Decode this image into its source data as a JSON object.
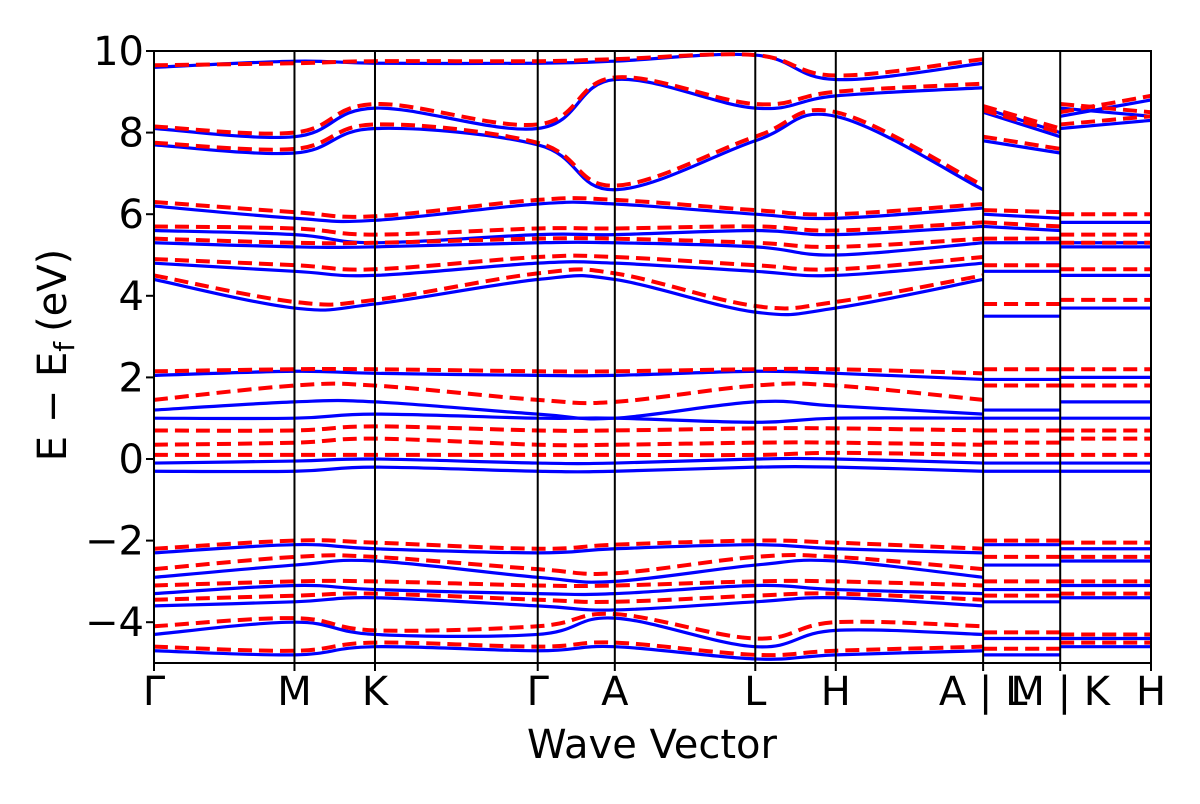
{
  "chart_data": {
    "type": "line",
    "title": "",
    "xlabel": "Wave Vector",
    "ylabel": "E − E",
    "ylabel_sub": "f",
    "ylabel_unit": "(eV)",
    "ylim": [
      -5,
      10
    ],
    "yticks": [
      -4,
      -2,
      0,
      2,
      4,
      6,
      8,
      10
    ],
    "ytick_labels": [
      "−4",
      "−2",
      "0",
      "2",
      "4",
      "6",
      "8",
      "10"
    ],
    "xlim": [
      0,
      5.82
    ],
    "kpoint_positions": [
      0,
      0.82,
      1.29,
      2.24,
      2.69,
      3.51,
      3.98,
      4.84,
      5.29,
      5.82
    ],
    "kpoint_labels": [
      "Γ",
      "M",
      "K",
      "Γ",
      "A",
      "L",
      "H",
      "A | L",
      "M | K",
      "H"
    ],
    "grid": false,
    "legend": "none",
    "series_colors": {
      "solid": "#0000ff",
      "dashed": "#ff0000"
    },
    "segments": [
      {
        "x": [
          0,
          0.82,
          1.29,
          2.24,
          2.69,
          3.51,
          3.98,
          4.84
        ]
      },
      {
        "x": [
          4.84,
          5.29
        ]
      },
      {
        "x": [
          5.29,
          5.82
        ]
      }
    ],
    "series": [
      {
        "style": "solid",
        "bands": [
          [
            [
              9.6,
              9.75,
              9.7,
              9.7,
              9.75,
              9.9,
              9.3,
              9.7
            ],
            [
              8.6,
              8.0
            ],
            [
              8.6,
              8.4
            ]
          ],
          [
            [
              8.1,
              7.9,
              8.6,
              8.1,
              9.3,
              8.6,
              8.9,
              9.1
            ],
            [
              8.5,
              7.9
            ],
            [
              8.4,
              8.8
            ]
          ],
          [
            [
              7.7,
              7.5,
              8.1,
              7.7,
              6.6,
              7.8,
              8.4,
              6.6
            ],
            [
              7.8,
              7.5
            ],
            [
              8.1,
              8.3
            ]
          ],
          [
            [
              6.2,
              5.9,
              5.85,
              6.25,
              6.25,
              6.0,
              5.9,
              6.15
            ],
            [
              6.0,
              5.9
            ],
            [
              5.8,
              5.8
            ]
          ],
          [
            [
              5.6,
              5.5,
              5.3,
              5.5,
              5.5,
              5.6,
              5.5,
              5.7
            ],
            [
              5.7,
              5.6
            ],
            [
              5.3,
              5.3
            ]
          ],
          [
            [
              5.3,
              5.2,
              5.2,
              5.3,
              5.3,
              5.2,
              5.0,
              5.3
            ],
            [
              5.3,
              5.3
            ],
            [
              5.2,
              5.2
            ]
          ],
          [
            [
              4.8,
              4.6,
              4.5,
              4.8,
              4.8,
              4.6,
              4.5,
              4.8
            ],
            [
              4.6,
              4.6
            ],
            [
              4.5,
              4.5
            ]
          ],
          [
            [
              4.4,
              3.7,
              3.8,
              4.4,
              4.4,
              3.6,
              3.7,
              4.4
            ],
            [
              3.5,
              3.5
            ],
            [
              3.7,
              3.7
            ]
          ],
          [
            [
              2.05,
              2.15,
              2.1,
              2.05,
              2.05,
              2.15,
              2.1,
              1.95
            ],
            [
              1.95,
              1.95
            ],
            [
              2.0,
              2.0
            ]
          ],
          [
            [
              1.2,
              1.4,
              1.4,
              1.1,
              1.0,
              1.4,
              1.3,
              1.1
            ],
            [
              1.2,
              1.2
            ],
            [
              1.4,
              1.4
            ]
          ],
          [
            [
              1.0,
              1.0,
              1.1,
              1.0,
              1.0,
              0.9,
              1.0,
              1.0
            ],
            [
              1.0,
              1.0
            ],
            [
              1.0,
              1.0
            ]
          ],
          [
            [
              -0.1,
              -0.05,
              0.0,
              -0.1,
              -0.1,
              0.0,
              0.0,
              -0.1
            ],
            [
              -0.1,
              -0.1
            ],
            [
              -0.1,
              -0.1
            ]
          ],
          [
            [
              -0.3,
              -0.3,
              -0.2,
              -0.3,
              -0.3,
              -0.2,
              -0.2,
              -0.3
            ],
            [
              -0.3,
              -0.3
            ],
            [
              -0.3,
              -0.3
            ]
          ],
          [
            [
              -2.3,
              -2.1,
              -2.2,
              -2.3,
              -2.2,
              -2.1,
              -2.2,
              -2.3
            ],
            [
              -2.1,
              -2.1
            ],
            [
              -2.2,
              -2.2
            ]
          ],
          [
            [
              -2.9,
              -2.6,
              -2.5,
              -2.9,
              -3.0,
              -2.6,
              -2.5,
              -2.9
            ],
            [
              -2.6,
              -2.6
            ],
            [
              -2.5,
              -2.5
            ]
          ],
          [
            [
              -3.3,
              -3.1,
              -3.2,
              -3.3,
              -3.3,
              -3.1,
              -3.2,
              -3.3
            ],
            [
              -3.2,
              -3.2
            ],
            [
              -3.1,
              -3.1
            ]
          ],
          [
            [
              -3.6,
              -3.5,
              -3.4,
              -3.6,
              -3.7,
              -3.5,
              -3.4,
              -3.6
            ],
            [
              -3.5,
              -3.5
            ],
            [
              -3.4,
              -3.4
            ]
          ],
          [
            [
              -4.3,
              -4.0,
              -4.3,
              -4.3,
              -3.9,
              -4.6,
              -4.2,
              -4.3
            ],
            [
              -4.4,
              -4.4
            ],
            [
              -4.4,
              -4.4
            ]
          ],
          [
            [
              -4.7,
              -4.8,
              -4.6,
              -4.7,
              -4.6,
              -4.9,
              -4.8,
              -4.7
            ],
            [
              -4.8,
              -4.8
            ],
            [
              -4.6,
              -4.6
            ]
          ]
        ]
      },
      {
        "style": "dashed",
        "bands": [
          [
            [
              9.65,
              9.7,
              9.75,
              9.75,
              9.8,
              9.9,
              9.4,
              9.8
            ],
            [
              8.65,
              8.1
            ],
            [
              8.7,
              8.5
            ]
          ],
          [
            [
              8.15,
              8.0,
              8.7,
              8.2,
              9.35,
              8.7,
              9.0,
              9.2
            ],
            [
              8.55,
              8.0
            ],
            [
              8.5,
              8.9
            ]
          ],
          [
            [
              7.75,
              7.6,
              8.2,
              7.75,
              6.7,
              7.9,
              8.5,
              6.7
            ],
            [
              7.9,
              7.6
            ],
            [
              8.2,
              8.4
            ]
          ],
          [
            [
              6.3,
              6.05,
              5.95,
              6.35,
              6.35,
              6.1,
              6.0,
              6.25
            ],
            [
              6.1,
              6.05
            ],
            [
              6.0,
              6.0
            ]
          ],
          [
            [
              5.7,
              5.65,
              5.5,
              5.65,
              5.65,
              5.7,
              5.6,
              5.8
            ],
            [
              5.8,
              5.7
            ],
            [
              5.5,
              5.5
            ]
          ],
          [
            [
              5.4,
              5.3,
              5.3,
              5.4,
              5.4,
              5.3,
              5.2,
              5.4
            ],
            [
              5.4,
              5.4
            ],
            [
              5.3,
              5.3
            ]
          ],
          [
            [
              4.9,
              4.75,
              4.65,
              4.95,
              4.95,
              4.75,
              4.65,
              4.95
            ],
            [
              4.75,
              4.75
            ],
            [
              4.65,
              4.65
            ]
          ],
          [
            [
              4.5,
              3.85,
              3.9,
              4.55,
              4.55,
              3.75,
              3.85,
              4.5
            ],
            [
              3.8,
              3.8
            ],
            [
              3.9,
              3.9
            ]
          ],
          [
            [
              2.15,
              2.2,
              2.2,
              2.15,
              2.15,
              2.2,
              2.2,
              2.1
            ],
            [
              2.2,
              2.2
            ],
            [
              2.2,
              2.2
            ]
          ],
          [
            [
              1.45,
              1.8,
              1.8,
              1.45,
              1.4,
              1.8,
              1.8,
              1.45
            ],
            [
              1.8,
              1.8
            ],
            [
              1.8,
              1.8
            ]
          ],
          [
            [
              0.7,
              0.7,
              0.8,
              0.7,
              0.7,
              0.75,
              0.75,
              0.7
            ],
            [
              0.7,
              0.7
            ],
            [
              0.7,
              0.7
            ]
          ],
          [
            [
              0.35,
              0.4,
              0.5,
              0.35,
              0.35,
              0.4,
              0.4,
              0.35
            ],
            [
              0.4,
              0.4
            ],
            [
              0.5,
              0.5
            ]
          ],
          [
            [
              0.1,
              0.1,
              0.1,
              0.1,
              0.1,
              0.1,
              0.15,
              0.1
            ],
            [
              0.1,
              0.1
            ],
            [
              0.1,
              0.1
            ]
          ],
          [
            [
              -2.2,
              -2.0,
              -2.05,
              -2.2,
              -2.1,
              -2.0,
              -2.05,
              -2.2
            ],
            [
              -2.0,
              -2.0
            ],
            [
              -2.05,
              -2.05
            ]
          ],
          [
            [
              -2.7,
              -2.4,
              -2.4,
              -2.7,
              -2.8,
              -2.4,
              -2.4,
              -2.7
            ],
            [
              -2.4,
              -2.4
            ],
            [
              -2.4,
              -2.4
            ]
          ],
          [
            [
              -3.1,
              -3.0,
              -3.0,
              -3.1,
              -3.1,
              -3.0,
              -3.0,
              -3.1
            ],
            [
              -3.0,
              -3.0
            ],
            [
              -3.0,
              -3.0
            ]
          ],
          [
            [
              -3.45,
              -3.35,
              -3.3,
              -3.45,
              -3.5,
              -3.35,
              -3.3,
              -3.45
            ],
            [
              -3.35,
              -3.35
            ],
            [
              -3.3,
              -3.3
            ]
          ],
          [
            [
              -4.1,
              -3.9,
              -4.2,
              -4.1,
              -3.8,
              -4.4,
              -4.0,
              -4.1
            ],
            [
              -4.25,
              -4.25
            ],
            [
              -4.3,
              -4.3
            ]
          ],
          [
            [
              -4.6,
              -4.7,
              -4.5,
              -4.6,
              -4.5,
              -4.8,
              -4.7,
              -4.6
            ],
            [
              -4.65,
              -4.65
            ],
            [
              -4.5,
              -4.5
            ]
          ]
        ]
      }
    ]
  }
}
